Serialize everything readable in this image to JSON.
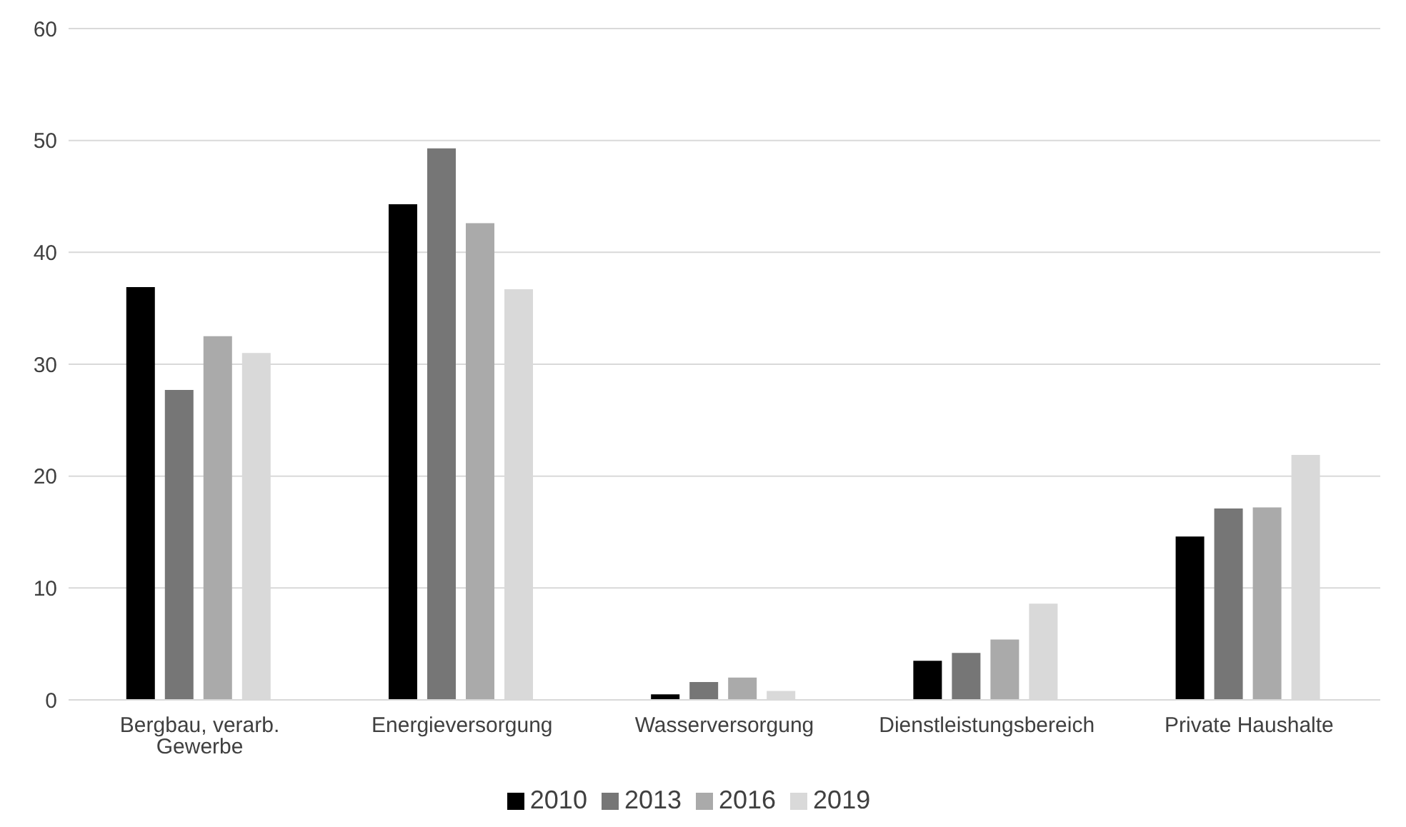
{
  "chart_data": {
    "type": "bar",
    "categories": [
      "Bergbau, verarb. Gewerbe",
      "Energieversorgung",
      "Wasserversorgung",
      "Dienstleistungsbereich",
      "Private Haushalte"
    ],
    "series": [
      {
        "name": "2010",
        "color": "#000000",
        "values": [
          36.9,
          44.3,
          0.5,
          3.5,
          14.6
        ]
      },
      {
        "name": "2013",
        "color": "#767676",
        "values": [
          27.7,
          49.3,
          1.6,
          4.2,
          17.1
        ]
      },
      {
        "name": "2016",
        "color": "#aaaaaa",
        "values": [
          32.5,
          42.6,
          2.0,
          5.4,
          17.2
        ]
      },
      {
        "name": "2019",
        "color": "#d9d9d9",
        "values": [
          31.0,
          36.7,
          0.8,
          8.6,
          21.9
        ]
      }
    ],
    "ylim": [
      0,
      60
    ],
    "yticks": [
      0,
      10,
      20,
      30,
      40,
      50,
      60
    ],
    "grid": "y",
    "legend": "bottom"
  }
}
